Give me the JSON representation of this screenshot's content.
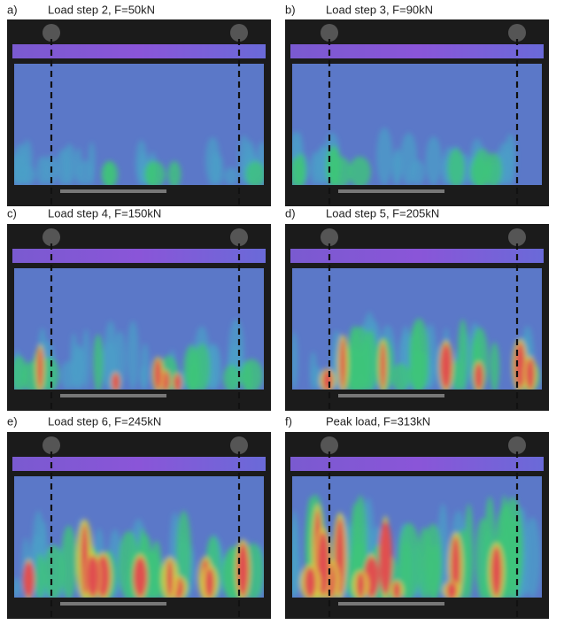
{
  "panels": [
    {
      "label": "a)",
      "caption": "Load step 2, F=50kN"
    },
    {
      "label": "b)",
      "caption": "Load step 3, F=90kN"
    },
    {
      "label": "c)",
      "caption": "Load step 4, F=150kN"
    },
    {
      "label": "d)",
      "caption": "Load step 5, F=205kN"
    },
    {
      "label": "e)",
      "caption": "Load step 6, F=245kN"
    },
    {
      "label": "f)",
      "caption": "Peak load, F=313kN"
    }
  ]
}
